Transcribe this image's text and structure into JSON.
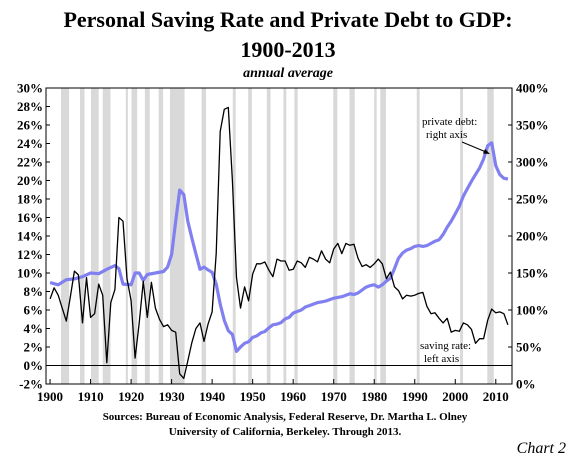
{
  "chart_data": {
    "type": "line",
    "title_line1": "Personal Saving Rate and Private Debt to GDP:",
    "title_line2": "1900-2013",
    "subtitle": "annual average",
    "x_ticks": [
      "1900",
      "1910",
      "1920",
      "1930",
      "1940",
      "1950",
      "1960",
      "1970",
      "1980",
      "1990",
      "2000",
      "2010"
    ],
    "xlim": [
      1899,
      2014
    ],
    "left_axis": {
      "ylim": [
        -2,
        30
      ],
      "ticks": [
        "-2%",
        "0%",
        "2%",
        "4%",
        "6%",
        "8%",
        "10%",
        "12%",
        "14%",
        "16%",
        "18%",
        "20%",
        "22%",
        "24%",
        "26%",
        "28%",
        "30%"
      ]
    },
    "right_axis": {
      "ylim": [
        0,
        400
      ],
      "ticks": [
        "0%",
        "50%",
        "100%",
        "150%",
        "200%",
        "250%",
        "300%",
        "350%",
        "400%"
      ]
    },
    "recession_bands": [
      [
        1902.7,
        1904.7
      ],
      [
        1907.4,
        1908.5
      ],
      [
        1910.1,
        1912.0
      ],
      [
        1913.0,
        1914.9
      ],
      [
        1918.7,
        1919.2
      ],
      [
        1920.1,
        1921.5
      ],
      [
        1923.4,
        1924.6
      ],
      [
        1926.8,
        1927.9
      ],
      [
        1929.6,
        1933.2
      ],
      [
        1937.4,
        1938.5
      ],
      [
        1945.1,
        1945.8
      ],
      [
        1948.9,
        1949.8
      ],
      [
        1953.5,
        1954.4
      ],
      [
        1957.6,
        1958.3
      ],
      [
        1960.3,
        1961.1
      ],
      [
        1969.9,
        1970.9
      ],
      [
        1973.9,
        1975.2
      ],
      [
        1980.0,
        1980.6
      ],
      [
        1981.5,
        1982.9
      ],
      [
        1990.5,
        1991.2
      ],
      [
        2001.2,
        2001.9
      ],
      [
        2007.9,
        2009.5
      ]
    ],
    "series": [
      {
        "axis": "left",
        "color": "#000000",
        "points": [
          [
            1900,
            7.2
          ],
          [
            1901,
            8.4
          ],
          [
            1902,
            7.6
          ],
          [
            1903,
            6.2
          ],
          [
            1904,
            4.8
          ],
          [
            1905,
            7.4
          ],
          [
            1906,
            10.2
          ],
          [
            1907,
            9.8
          ],
          [
            1908,
            4.6
          ],
          [
            1909,
            9.5
          ],
          [
            1910,
            5.2
          ],
          [
            1911,
            5.6
          ],
          [
            1912,
            8.8
          ],
          [
            1913,
            7.6
          ],
          [
            1914,
            0.3
          ],
          [
            1915,
            6.8
          ],
          [
            1916,
            8.2
          ],
          [
            1917,
            16.0
          ],
          [
            1918,
            15.6
          ],
          [
            1919,
            9.4
          ],
          [
            1920,
            7.0
          ],
          [
            1921,
            0.8
          ],
          [
            1922,
            4.6
          ],
          [
            1923,
            9.1
          ],
          [
            1924,
            5.2
          ],
          [
            1925,
            9.0
          ],
          [
            1926,
            6.2
          ],
          [
            1927,
            5.0
          ],
          [
            1928,
            4.2
          ],
          [
            1929,
            4.4
          ],
          [
            1930,
            3.8
          ],
          [
            1931,
            3.6
          ],
          [
            1932,
            -0.9
          ],
          [
            1933,
            -1.4
          ],
          [
            1934,
            0.5
          ],
          [
            1935,
            2.5
          ],
          [
            1936,
            4.0
          ],
          [
            1937,
            4.6
          ],
          [
            1938,
            2.6
          ],
          [
            1939,
            4.5
          ],
          [
            1940,
            5.8
          ],
          [
            1941,
            12.1
          ],
          [
            1942,
            25.3
          ],
          [
            1943,
            27.7
          ],
          [
            1944,
            27.9
          ],
          [
            1945,
            20.0
          ],
          [
            1946,
            9.5
          ],
          [
            1947,
            6.2
          ],
          [
            1948,
            8.5
          ],
          [
            1949,
            7.0
          ],
          [
            1950,
            9.9
          ],
          [
            1951,
            11.0
          ],
          [
            1952,
            11.0
          ],
          [
            1953,
            11.2
          ],
          [
            1954,
            10.3
          ],
          [
            1955,
            9.6
          ],
          [
            1956,
            11.5
          ],
          [
            1957,
            11.3
          ],
          [
            1958,
            11.3
          ],
          [
            1959,
            10.3
          ],
          [
            1960,
            10.4
          ],
          [
            1961,
            11.3
          ],
          [
            1962,
            11.1
          ],
          [
            1963,
            10.6
          ],
          [
            1964,
            11.7
          ],
          [
            1965,
            11.5
          ],
          [
            1966,
            11.2
          ],
          [
            1967,
            12.4
          ],
          [
            1968,
            11.5
          ],
          [
            1969,
            11.1
          ],
          [
            1970,
            12.6
          ],
          [
            1971,
            13.2
          ],
          [
            1972,
            12.1
          ],
          [
            1973,
            13.2
          ],
          [
            1974,
            13.0
          ],
          [
            1975,
            13.1
          ],
          [
            1976,
            11.6
          ],
          [
            1977,
            10.7
          ],
          [
            1978,
            10.9
          ],
          [
            1979,
            10.6
          ],
          [
            1980,
            11.0
          ],
          [
            1981,
            11.5
          ],
          [
            1982,
            11.0
          ],
          [
            1983,
            9.4
          ],
          [
            1984,
            10.1
          ],
          [
            1985,
            8.5
          ],
          [
            1986,
            8.1
          ],
          [
            1987,
            7.2
          ],
          [
            1988,
            7.6
          ],
          [
            1989,
            7.5
          ],
          [
            1990,
            7.6
          ],
          [
            1991,
            7.8
          ],
          [
            1992,
            7.9
          ],
          [
            1993,
            6.4
          ],
          [
            1994,
            5.6
          ],
          [
            1995,
            5.7
          ],
          [
            1996,
            5.1
          ],
          [
            1997,
            4.6
          ],
          [
            1998,
            5.1
          ],
          [
            1999,
            3.6
          ],
          [
            2000,
            3.8
          ],
          [
            2001,
            3.7
          ],
          [
            2002,
            4.6
          ],
          [
            2003,
            4.4
          ],
          [
            2004,
            3.9
          ],
          [
            2005,
            2.4
          ],
          [
            2006,
            2.9
          ],
          [
            2007,
            2.9
          ],
          [
            2008,
            4.9
          ],
          [
            2009,
            6.1
          ],
          [
            2010,
            5.7
          ],
          [
            2011,
            5.8
          ],
          [
            2012,
            5.6
          ],
          [
            2013,
            4.4
          ]
        ]
      },
      {
        "axis": "right",
        "color": "#8080f0",
        "points": [
          [
            1900,
            137
          ],
          [
            1902,
            134
          ],
          [
            1904,
            141
          ],
          [
            1906,
            142
          ],
          [
            1908,
            145
          ],
          [
            1910,
            150
          ],
          [
            1912,
            149
          ],
          [
            1914,
            155
          ],
          [
            1916,
            160
          ],
          [
            1917,
            156
          ],
          [
            1918,
            135
          ],
          [
            1920,
            134
          ],
          [
            1921,
            150
          ],
          [
            1922,
            150
          ],
          [
            1923,
            140
          ],
          [
            1924,
            148
          ],
          [
            1926,
            150
          ],
          [
            1928,
            152
          ],
          [
            1929,
            158
          ],
          [
            1930,
            175
          ],
          [
            1931,
            220
          ],
          [
            1932,
            262
          ],
          [
            1933,
            256
          ],
          [
            1934,
            220
          ],
          [
            1935,
            197
          ],
          [
            1936,
            176
          ],
          [
            1937,
            155
          ],
          [
            1938,
            158
          ],
          [
            1939,
            154
          ],
          [
            1940,
            151
          ],
          [
            1941,
            135
          ],
          [
            1942,
            108
          ],
          [
            1943,
            86
          ],
          [
            1944,
            72
          ],
          [
            1945,
            67
          ],
          [
            1946,
            44
          ],
          [
            1947,
            50
          ],
          [
            1948,
            55
          ],
          [
            1949,
            57
          ],
          [
            1950,
            63
          ],
          [
            1951,
            65
          ],
          [
            1952,
            69
          ],
          [
            1953,
            71
          ],
          [
            1954,
            76
          ],
          [
            1955,
            80
          ],
          [
            1956,
            81
          ],
          [
            1957,
            83
          ],
          [
            1958,
            88
          ],
          [
            1959,
            90
          ],
          [
            1960,
            96
          ],
          [
            1961,
            98
          ],
          [
            1962,
            100
          ],
          [
            1963,
            104
          ],
          [
            1964,
            106
          ],
          [
            1965,
            108
          ],
          [
            1966,
            110
          ],
          [
            1967,
            111
          ],
          [
            1968,
            112
          ],
          [
            1969,
            114
          ],
          [
            1970,
            116
          ],
          [
            1971,
            117
          ],
          [
            1972,
            118
          ],
          [
            1973,
            120
          ],
          [
            1974,
            122
          ],
          [
            1975,
            121
          ],
          [
            1976,
            123
          ],
          [
            1977,
            127
          ],
          [
            1978,
            131
          ],
          [
            1979,
            133
          ],
          [
            1980,
            134
          ],
          [
            1981,
            131
          ],
          [
            1982,
            134
          ],
          [
            1983,
            139
          ],
          [
            1984,
            143
          ],
          [
            1985,
            156
          ],
          [
            1986,
            170
          ],
          [
            1987,
            177
          ],
          [
            1988,
            181
          ],
          [
            1989,
            183
          ],
          [
            1990,
            186
          ],
          [
            1991,
            187
          ],
          [
            1992,
            186
          ],
          [
            1993,
            187
          ],
          [
            1994,
            190
          ],
          [
            1995,
            193
          ],
          [
            1996,
            195
          ],
          [
            1997,
            202
          ],
          [
            1998,
            212
          ],
          [
            1999,
            220
          ],
          [
            2000,
            230
          ],
          [
            2001,
            240
          ],
          [
            2002,
            254
          ],
          [
            2003,
            264
          ],
          [
            2004,
            274
          ],
          [
            2005,
            283
          ],
          [
            2006,
            292
          ],
          [
            2007,
            304
          ],
          [
            2008,
            322
          ],
          [
            2009,
            326
          ],
          [
            2010,
            295
          ],
          [
            2011,
            283
          ],
          [
            2012,
            278
          ],
          [
            2013,
            277
          ]
        ]
      }
    ],
    "annotations": [
      {
        "lines": [
          "private debt:",
          "right axis"
        ]
      },
      {
        "lines": [
          "saving rate:",
          "left axis"
        ]
      }
    ],
    "source_line1": "Sources: Bureau of Economic Analysis, Federal Reserve, Dr. Martha L. Olney",
    "source_line2": "University of California, Berkeley. Through 2013.",
    "tag": "Chart 2"
  }
}
